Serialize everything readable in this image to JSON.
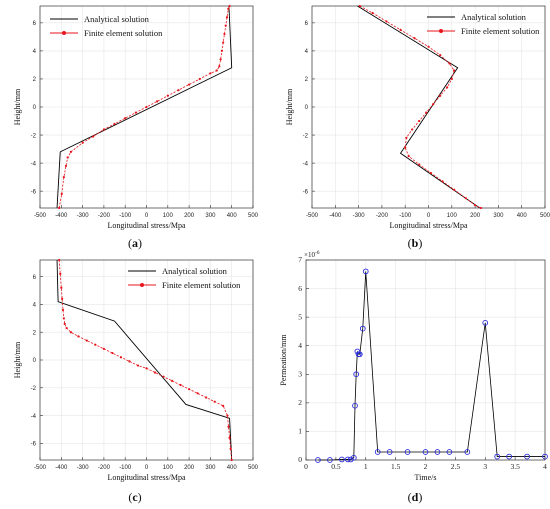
{
  "chart_data": [
    {
      "id": "a",
      "type": "line",
      "panel_label": "a",
      "xlabel": "Longitudinal stress/Mpa",
      "ylabel": "Height/mm",
      "xlim": [
        -500,
        500
      ],
      "ylim": [
        -7.2,
        7.2
      ],
      "xticks": [
        -500,
        -400,
        -300,
        -200,
        -100,
        0,
        100,
        200,
        300,
        400,
        500
      ],
      "yticks": [
        -6,
        -4,
        -2,
        0,
        2,
        4,
        6
      ],
      "legend_position": "top-right",
      "series": [
        {
          "name": "Analytical solution",
          "color": "#000000",
          "marker": "none",
          "x": [
            -420,
            -405,
            400,
            387
          ],
          "y": [
            -7.2,
            -3.2,
            2.8,
            7.2
          ]
        },
        {
          "name": "Finite element solution",
          "color": "#e8141c",
          "marker": "dot",
          "x": [
            -410,
            -398,
            -388,
            -378,
            -370,
            -355,
            -300,
            -250,
            -200,
            -150,
            -100,
            -50,
            0,
            50,
            100,
            150,
            200,
            250,
            300,
            330,
            342,
            348,
            354,
            360,
            366,
            372,
            378,
            384,
            390
          ],
          "y": [
            -7.2,
            -6.2,
            -5.0,
            -4.2,
            -3.6,
            -3.2,
            -2.55,
            -2.1,
            -1.6,
            -1.2,
            -0.8,
            -0.4,
            0.0,
            0.4,
            0.8,
            1.2,
            1.6,
            2.0,
            2.4,
            2.6,
            2.9,
            3.4,
            4.0,
            4.6,
            5.2,
            5.8,
            6.4,
            7.0,
            7.2
          ]
        }
      ]
    },
    {
      "id": "b",
      "type": "line",
      "panel_label": "b",
      "xlabel": "Longitudinal stress/Mpa",
      "ylabel": "Height/mm",
      "xlim": [
        -500,
        500
      ],
      "ylim": [
        -7.2,
        7.2
      ],
      "xticks": [
        -500,
        -400,
        -300,
        -200,
        -100,
        0,
        100,
        200,
        300,
        400,
        500
      ],
      "yticks": [
        -6,
        -4,
        -2,
        0,
        2,
        4,
        6
      ],
      "legend_position": "top-right",
      "series": [
        {
          "name": "Analytical solution",
          "color": "#000000",
          "marker": "none",
          "x": [
            -305,
            125,
            -120,
            220
          ],
          "y": [
            7.2,
            2.8,
            -3.3,
            -7.2
          ]
        },
        {
          "name": "Finite element solution",
          "color": "#e8141c",
          "marker": "dot",
          "x": [
            -295,
            -240,
            -180,
            -120,
            -60,
            0,
            50,
            90,
            110,
            100,
            80,
            50,
            20,
            -10,
            -40,
            -70,
            -95,
            -100,
            -85,
            -40,
            10,
            60,
            110,
            160,
            200,
            225
          ],
          "y": [
            7.2,
            6.7,
            6.1,
            5.5,
            4.9,
            4.3,
            3.7,
            3.1,
            2.6,
            2.0,
            1.4,
            0.8,
            0.2,
            -0.4,
            -1.0,
            -1.6,
            -2.2,
            -2.9,
            -3.5,
            -4.1,
            -4.7,
            -5.3,
            -5.9,
            -6.5,
            -7.0,
            -7.2
          ]
        }
      ]
    },
    {
      "id": "c",
      "type": "line",
      "panel_label": "c",
      "xlabel": "Longitudinal stress/Mpa",
      "ylabel": "Height/mm",
      "xlim": [
        -500,
        500
      ],
      "ylim": [
        -7.2,
        7.2
      ],
      "xticks": [
        -500,
        -400,
        -300,
        -200,
        -100,
        0,
        100,
        200,
        300,
        400,
        500
      ],
      "yticks": [
        -6,
        -4,
        -2,
        0,
        2,
        4,
        6
      ],
      "legend_position": "top-right",
      "series": [
        {
          "name": "Analytical solution",
          "color": "#000000",
          "marker": "none",
          "x": [
            -420,
            -415,
            -150,
            185,
            390,
            400
          ],
          "y": [
            7.2,
            4.2,
            2.8,
            -3.2,
            -4.2,
            -7.2
          ]
        },
        {
          "name": "Finite element solution",
          "color": "#e8141c",
          "marker": "dot",
          "x": [
            -410,
            -405,
            -400,
            -396,
            -392,
            -388,
            -384,
            -375,
            -355,
            -320,
            -280,
            -240,
            -200,
            -160,
            -120,
            -80,
            -40,
            0,
            40,
            80,
            120,
            160,
            200,
            240,
            280,
            320,
            360,
            380,
            385,
            390,
            395,
            400
          ],
          "y": [
            7.2,
            6.2,
            5.2,
            4.4,
            3.6,
            3.0,
            2.6,
            2.3,
            2.0,
            1.7,
            1.4,
            1.1,
            0.8,
            0.5,
            0.2,
            -0.1,
            -0.4,
            -0.6,
            -0.9,
            -1.2,
            -1.5,
            -1.8,
            -2.1,
            -2.4,
            -2.7,
            -3.0,
            -3.3,
            -4.0,
            -4.8,
            -5.6,
            -6.4,
            -7.2
          ]
        }
      ]
    },
    {
      "id": "d",
      "type": "line",
      "panel_label": "d",
      "xlabel": "Time/s",
      "ylabel": "Permeation/mm",
      "exponent_label": "×10",
      "exponent_power": "-6",
      "xlim": [
        0,
        4
      ],
      "ylim": [
        0,
        7
      ],
      "xticks": [
        0,
        0.5,
        1,
        1.5,
        2,
        2.5,
        3,
        3.5,
        4
      ],
      "yticks": [
        0,
        1,
        2,
        3,
        4,
        5,
        6,
        7
      ],
      "series": [
        {
          "name": "",
          "color": "#000000",
          "marker": "circle",
          "marker_color": "#2b2bdc",
          "x": [
            0.2,
            0.4,
            0.6,
            0.7,
            0.75,
            0.8,
            0.82,
            0.84,
            0.86,
            0.88,
            0.9,
            0.95,
            1.0,
            1.2,
            1.4,
            1.7,
            2.0,
            2.2,
            2.4,
            2.7,
            3.0,
            3.2,
            3.4,
            3.7,
            4.0
          ],
          "y": [
            0.0,
            0.0,
            0.02,
            0.02,
            0.02,
            0.08,
            1.9,
            3.0,
            3.8,
            3.7,
            3.7,
            4.6,
            6.6,
            0.28,
            0.28,
            0.28,
            0.28,
            0.28,
            0.28,
            0.28,
            4.8,
            0.12,
            0.12,
            0.12,
            0.12
          ]
        }
      ]
    }
  ]
}
